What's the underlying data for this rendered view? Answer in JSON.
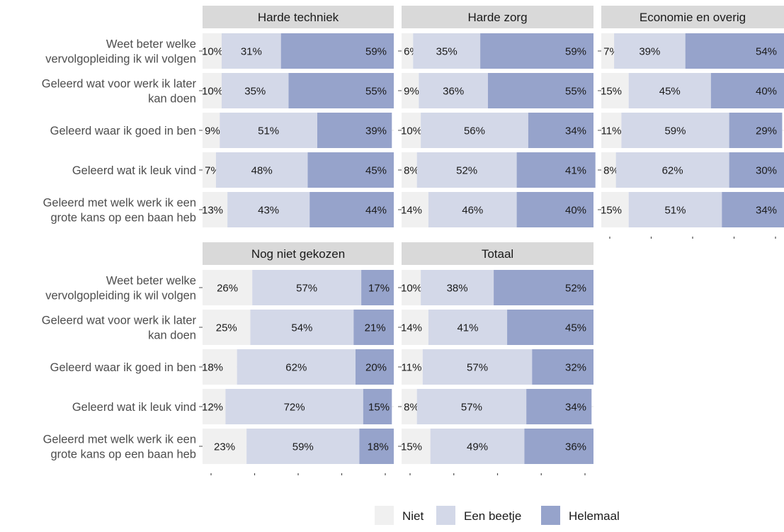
{
  "chart_data": {
    "type": "bar",
    "orientation": "horizontal",
    "stacked": true,
    "normalized": true,
    "value_format": "percent",
    "grid": true,
    "legend_position": "bottom",
    "categories": [
      [
        "Weet beter welke",
        "vervolgopleiding ik wil volgen"
      ],
      [
        "Geleerd wat voor werk ik later",
        "kan doen"
      ],
      [
        "Geleerd waar ik goed in ben"
      ],
      [
        "Geleerd wat ik leuk vind"
      ],
      [
        "Geleerd met welk werk ik een",
        "grote kans op een baan heb"
      ]
    ],
    "series": [
      {
        "name": "Niet",
        "color": "#f0f0f0"
      },
      {
        "name": "Een beetje",
        "color": "#d3d8e8"
      },
      {
        "name": "Helemaal",
        "color": "#96a3cb"
      }
    ],
    "panels": [
      {
        "title": "Harde techniek",
        "values": [
          [
            10,
            31,
            59
          ],
          [
            10,
            35,
            55
          ],
          [
            9,
            51,
            39
          ],
          [
            7,
            48,
            45
          ],
          [
            13,
            43,
            44
          ]
        ]
      },
      {
        "title": "Harde zorg",
        "values": [
          [
            6,
            35,
            59
          ],
          [
            9,
            36,
            55
          ],
          [
            10,
            56,
            34
          ],
          [
            8,
            52,
            41
          ],
          [
            14,
            46,
            40
          ]
        ]
      },
      {
        "title": "Economie en overig",
        "values": [
          [
            7,
            39,
            54
          ],
          [
            15,
            45,
            40
          ],
          [
            11,
            59,
            29
          ],
          [
            8,
            62,
            30
          ],
          [
            15,
            51,
            34
          ]
        ]
      },
      {
        "title": "Nog niet gekozen",
        "values": [
          [
            26,
            57,
            17
          ],
          [
            25,
            54,
            21
          ],
          [
            18,
            62,
            20
          ],
          [
            12,
            72,
            15
          ],
          [
            23,
            59,
            18
          ]
        ]
      },
      {
        "title": "Totaal",
        "values": [
          [
            10,
            38,
            52
          ],
          [
            14,
            41,
            45
          ],
          [
            11,
            57,
            32
          ],
          [
            8,
            57,
            34
          ],
          [
            15,
            49,
            36
          ]
        ]
      }
    ]
  }
}
